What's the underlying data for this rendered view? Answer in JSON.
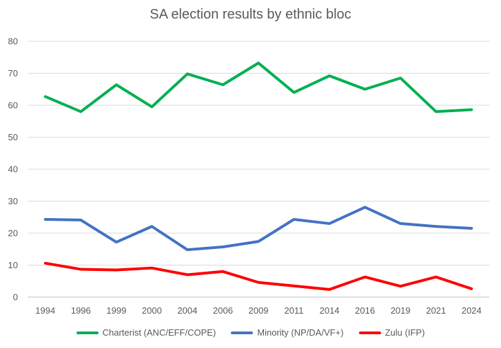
{
  "chart_data": {
    "type": "line",
    "title": "SA election results by ethnic bloc",
    "categories": [
      "1994",
      "1996",
      "1999",
      "2000",
      "2004",
      "2006",
      "2009",
      "2011",
      "2014",
      "2016",
      "2019",
      "2021",
      "2024"
    ],
    "ylim": [
      0,
      80
    ],
    "yticks": [
      0,
      10,
      20,
      30,
      40,
      50,
      60,
      70,
      80
    ],
    "grid": true,
    "legend": "bottom",
    "series": [
      {
        "name": "Charterist (ANC/EFF/COPE)",
        "color": "#00b050",
        "values": [
          62.7,
          58.0,
          66.4,
          59.5,
          69.8,
          66.4,
          73.2,
          64.0,
          69.2,
          65.0,
          68.5,
          58.0,
          58.6
        ]
      },
      {
        "name": "Minority (NP/DA/VF+)",
        "color": "#4472c4",
        "values": [
          24.3,
          24.1,
          17.2,
          22.1,
          14.8,
          15.7,
          17.4,
          24.3,
          23.0,
          28.1,
          23.0,
          22.1,
          21.5
        ]
      },
      {
        "name": "Zulu (IFP)",
        "color": "#ff0000",
        "values": [
          10.6,
          8.7,
          8.5,
          9.1,
          7.0,
          8.0,
          4.6,
          3.5,
          2.4,
          6.3,
          3.4,
          6.3,
          2.6
        ]
      }
    ]
  }
}
